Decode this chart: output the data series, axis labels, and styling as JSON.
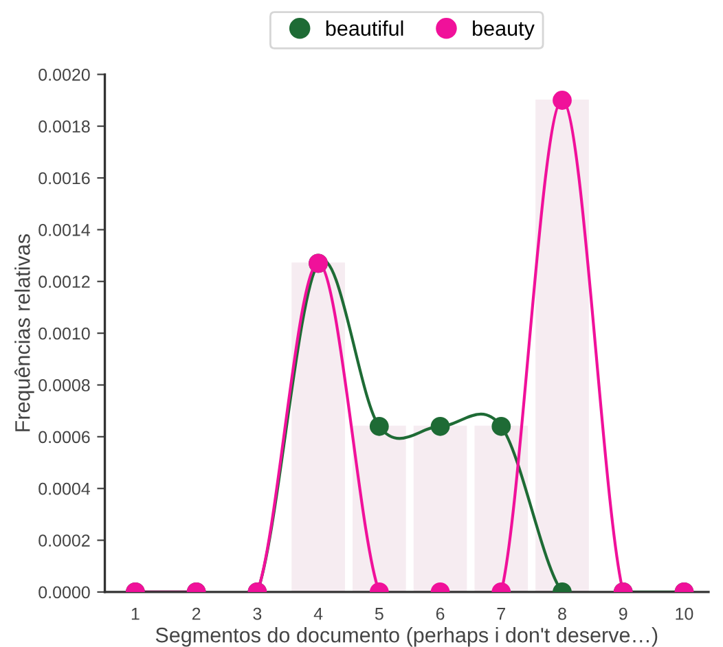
{
  "chart_data": {
    "type": "line",
    "xlabel": "Segmentos do documento (perhaps i don't deserve…)",
    "ylabel": "Frequências relativas",
    "x": [
      1,
      2,
      3,
      4,
      5,
      6,
      7,
      8,
      9,
      10
    ],
    "series": [
      {
        "type": "bar",
        "color": "#f6ecf1",
        "values": [
          0,
          0,
          0,
          0.00127,
          0.00064,
          0.00064,
          0.00064,
          0.0019,
          0,
          0
        ]
      },
      {
        "name": "beautiful",
        "color": "#1e6b35",
        "values": [
          0,
          0,
          0,
          0.00127,
          0.00064,
          0.00064,
          0.00064,
          0,
          0,
          0
        ]
      },
      {
        "name": "beauty",
        "color": "#f0119a",
        "values": [
          0,
          0,
          0,
          0.00127,
          0,
          0,
          0,
          0.0019,
          0,
          0
        ]
      }
    ],
    "xlim": [
      0.5,
      10.4
    ],
    "xticks": [
      1,
      2,
      3,
      4,
      5,
      6,
      7,
      8,
      9,
      10
    ],
    "ylim": [
      0,
      0.002
    ],
    "yticks": [
      {
        "value": 0,
        "label": "0.0000"
      },
      {
        "value": 0.0002,
        "label": "0.0002"
      },
      {
        "value": 0.0004,
        "label": "0.0004"
      },
      {
        "value": 0.0006,
        "label": "0.0006"
      },
      {
        "value": 0.0008,
        "label": "0.0008"
      },
      {
        "value": 0.001,
        "label": "0.0010"
      },
      {
        "value": 0.0012,
        "label": "0.0012"
      },
      {
        "value": 0.0014,
        "label": "0.0014"
      },
      {
        "value": 0.0016,
        "label": "0.0016"
      },
      {
        "value": 0.0018,
        "label": "0.0018"
      },
      {
        "value": 0.002,
        "label": "0.0020"
      }
    ],
    "marker": "circle",
    "legend": "top",
    "grid": false
  }
}
